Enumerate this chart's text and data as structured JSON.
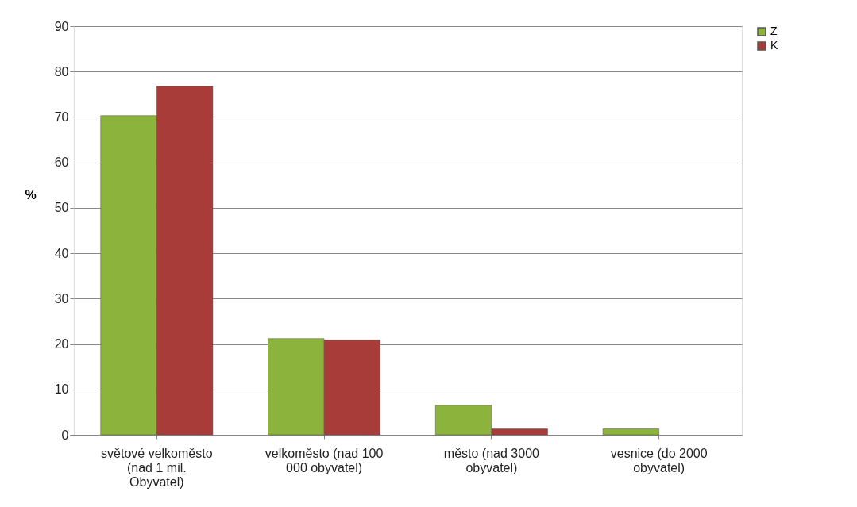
{
  "chart_data": {
    "type": "bar",
    "ylabel": "%",
    "categories": [
      "světové velkoměsto (nad 1 mil. Obyvatel)",
      "velkoměsto (nad 100 000 obyvatel)",
      "město (nad 3000 obyvatel)",
      "vesnice (do 2000 obyvatel)"
    ],
    "series": [
      {
        "name": "Z",
        "color": "#8cb33c",
        "values": [
          70.3,
          21.2,
          6.5,
          1.3
        ]
      },
      {
        "name": "K",
        "color": "#a83c38",
        "values": [
          76.8,
          20.9,
          1.3,
          null
        ]
      }
    ],
    "ylim": [
      0,
      90
    ],
    "yticks": [
      0,
      10,
      20,
      30,
      40,
      50,
      60,
      70,
      80,
      90
    ],
    "grid": "y",
    "legend": "right"
  }
}
